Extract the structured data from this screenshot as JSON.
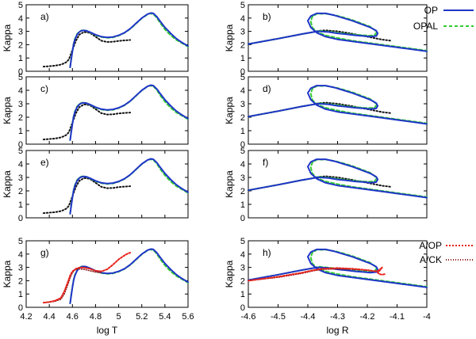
{
  "chart_data": {
    "type": "line",
    "description_grid": "4 rows x 2 columns of opacity panels",
    "ylabel": "Kappa",
    "ylim": [
      0,
      5
    ],
    "yticks": [
      "0",
      "1",
      "2",
      "3",
      "4",
      "5"
    ],
    "left_column": {
      "xlabel": "log T",
      "xlim": [
        4.2,
        5.6
      ],
      "xticks": [
        "4.2",
        "4.4",
        "4.6",
        "4.8",
        "5",
        "5.2",
        "5.4",
        "5.6"
      ]
    },
    "right_column": {
      "xlabel": "log R",
      "xlim": [
        -4.6,
        -4.0
      ],
      "xticks": [
        "-4.6",
        "-4.5",
        "-4.4",
        "-4.3",
        "-4.2",
        "-4.1",
        "-4"
      ]
    },
    "panels": [
      {
        "label": "a)",
        "col": "left"
      },
      {
        "label": "b)",
        "col": "right"
      },
      {
        "label": "c)",
        "col": "left"
      },
      {
        "label": "d)",
        "col": "right"
      },
      {
        "label": "e)",
        "col": "left"
      },
      {
        "label": "f)",
        "col": "right"
      },
      {
        "label": "g)",
        "col": "left"
      },
      {
        "label": "h)",
        "col": "right"
      }
    ],
    "legend_main": [
      {
        "name": "OP",
        "color": "#1f35c8",
        "style": "solid"
      },
      {
        "name": "OPAL",
        "color": "#33cc33",
        "style": "dashed"
      }
    ],
    "legend_ghi": [
      {
        "name": "A/OP",
        "color": "#e8231c",
        "style": "dotted"
      },
      {
        "name": "A/CK",
        "color": "#8b1a1a",
        "style": "dotted"
      }
    ],
    "left_series": {
      "OP": {
        "x": [
          4.58,
          4.59,
          4.6,
          4.61,
          4.62,
          4.64,
          4.66,
          4.68,
          4.7,
          4.72,
          4.75,
          4.8,
          4.85,
          4.9,
          4.95,
          5.0,
          5.05,
          5.1,
          5.15,
          5.2,
          5.25,
          5.28,
          5.3,
          5.33,
          5.36,
          5.4,
          5.45,
          5.5,
          5.55,
          5.6
        ],
        "y": [
          0.3,
          0.9,
          1.5,
          2.0,
          2.35,
          2.75,
          2.95,
          3.05,
          3.07,
          3.05,
          2.95,
          2.75,
          2.6,
          2.55,
          2.58,
          2.7,
          2.9,
          3.2,
          3.6,
          4.0,
          4.3,
          4.38,
          4.35,
          4.1,
          3.75,
          3.3,
          2.85,
          2.45,
          2.15,
          1.9
        ]
      },
      "OPAL": {
        "x": [
          4.58,
          4.59,
          4.6,
          4.61,
          4.62,
          4.64,
          4.66,
          4.68,
          4.7,
          4.72,
          4.75,
          4.8,
          4.85,
          4.9,
          4.95,
          5.0,
          5.05,
          5.1,
          5.15,
          5.2,
          5.25,
          5.27,
          5.3,
          5.33,
          5.36,
          5.4,
          5.45,
          5.5,
          5.55,
          5.6
        ],
        "y": [
          0.3,
          0.95,
          1.55,
          2.05,
          2.4,
          2.8,
          2.98,
          3.07,
          3.08,
          3.05,
          2.93,
          2.72,
          2.57,
          2.52,
          2.55,
          2.68,
          2.88,
          3.18,
          3.58,
          3.98,
          4.28,
          4.35,
          4.3,
          4.02,
          3.62,
          3.15,
          2.7,
          2.35,
          2.1,
          1.85
        ]
      },
      "black_dotted": {
        "x": [
          4.35,
          4.4,
          4.45,
          4.5,
          4.53,
          4.55,
          4.57,
          4.6,
          4.63,
          4.66,
          4.7,
          4.75,
          4.8,
          4.85,
          4.9,
          4.95,
          5.0,
          5.05,
          5.1
        ],
        "y": [
          0.35,
          0.38,
          0.42,
          0.5,
          0.6,
          0.7,
          0.9,
          1.6,
          2.3,
          2.75,
          2.95,
          2.9,
          2.6,
          2.3,
          2.2,
          2.22,
          2.28,
          2.32,
          2.35
        ]
      },
      "A_OP_g": {
        "x": [
          4.35,
          4.4,
          4.45,
          4.5,
          4.53,
          4.56,
          4.58,
          4.6,
          4.63,
          4.66,
          4.7,
          4.75,
          4.8,
          4.85,
          4.9,
          4.95,
          5.0,
          5.05,
          5.08,
          5.1
        ],
        "y": [
          0.35,
          0.4,
          0.5,
          0.7,
          1.2,
          1.9,
          2.4,
          2.7,
          2.9,
          2.98,
          2.98,
          2.9,
          2.75,
          2.7,
          2.85,
          3.2,
          3.6,
          3.9,
          4.05,
          4.1
        ]
      },
      "A_CK_g": {
        "x": [
          4.35,
          4.4,
          4.45,
          4.5,
          4.53,
          4.56,
          4.58,
          4.6,
          4.62,
          4.65,
          4.7,
          4.75,
          4.8,
          4.85
        ],
        "y": [
          0.35,
          0.38,
          0.45,
          0.6,
          1.0,
          1.7,
          2.2,
          2.6,
          2.8,
          2.9,
          2.85,
          2.75,
          2.65,
          2.6
        ]
      }
    },
    "right_series": {
      "OP": {
        "x": [
          -4.6,
          -4.5,
          -4.42,
          -4.38,
          -4.37,
          -4.36,
          -4.35,
          -4.33,
          -4.3,
          -4.27,
          -4.24,
          -4.21,
          -4.19,
          -4.17,
          -4.165,
          -4.17,
          -4.19,
          -4.22,
          -4.25,
          -4.28,
          -4.31,
          -4.34,
          -4.37,
          -4.39,
          -4.4,
          -4.39,
          -4.37,
          -4.34,
          -4.3,
          -4.25,
          -4.2,
          -4.15,
          -4.1,
          -4.05,
          -4.0
        ],
        "y": [
          2.05,
          2.45,
          2.8,
          2.95,
          3.0,
          3.0,
          2.98,
          2.95,
          2.85,
          2.78,
          2.7,
          2.65,
          2.6,
          2.65,
          2.85,
          3.05,
          3.3,
          3.55,
          3.8,
          4.0,
          4.2,
          4.35,
          4.35,
          4.15,
          3.8,
          3.3,
          2.9,
          2.6,
          2.4,
          2.25,
          2.1,
          1.95,
          1.8,
          1.65,
          1.5
        ]
      },
      "OPAL": {
        "x": [
          -4.6,
          -4.5,
          -4.42,
          -4.38,
          -4.37,
          -4.36,
          -4.35,
          -4.33,
          -4.3,
          -4.27,
          -4.24,
          -4.21,
          -4.19,
          -4.175,
          -4.17,
          -4.175,
          -4.19,
          -4.22,
          -4.25,
          -4.28,
          -4.31,
          -4.34,
          -4.37,
          -4.385,
          -4.39,
          -4.385,
          -4.37,
          -4.34,
          -4.3,
          -4.25,
          -4.2,
          -4.15,
          -4.1,
          -4.05,
          -4.0
        ],
        "y": [
          2.05,
          2.45,
          2.8,
          2.95,
          3.02,
          3.05,
          3.02,
          2.98,
          2.9,
          2.82,
          2.75,
          2.7,
          2.68,
          2.72,
          2.9,
          3.1,
          3.35,
          3.6,
          3.85,
          4.05,
          4.22,
          4.33,
          4.32,
          4.1,
          3.75,
          3.3,
          2.95,
          2.7,
          2.5,
          2.3,
          2.15,
          2.0,
          1.85,
          1.7,
          1.55
        ]
      },
      "black_dotted": {
        "x": [
          -4.6,
          -4.5,
          -4.42,
          -4.38,
          -4.36,
          -4.34,
          -4.3,
          -4.25,
          -4.2,
          -4.15,
          -4.12
        ],
        "y": [
          2.05,
          2.45,
          2.8,
          2.95,
          3.05,
          3.08,
          3.0,
          2.82,
          2.6,
          2.38,
          2.3
        ]
      },
      "A_OP_h": {
        "x": [
          -4.6,
          -4.5,
          -4.42,
          -4.38,
          -4.35,
          -4.3,
          -4.25,
          -4.2,
          -4.17,
          -4.16,
          -4.15,
          -4.155,
          -4.165,
          -4.16,
          -4.15,
          -4.14
        ],
        "y": [
          2.0,
          2.3,
          2.6,
          2.8,
          2.9,
          2.95,
          2.9,
          2.8,
          2.7,
          2.8,
          3.0,
          2.85,
          2.6,
          2.5,
          2.45,
          2.5
        ]
      },
      "A_CK_h": {
        "x": [
          -4.6,
          -4.5,
          -4.42,
          -4.38,
          -4.35,
          -4.3,
          -4.25,
          -4.2,
          -4.17
        ],
        "y": [
          2.0,
          2.25,
          2.55,
          2.75,
          2.85,
          2.88,
          2.85,
          2.78,
          2.7
        ]
      }
    }
  }
}
